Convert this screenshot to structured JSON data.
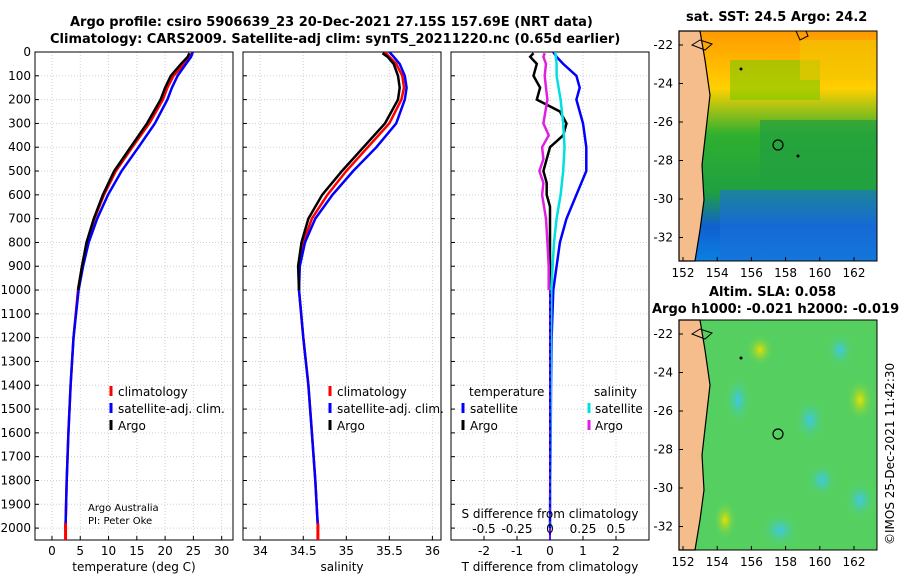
{
  "header": {
    "title_line1": "Argo profile: csiro 5906639_23 20-Dec-2021 27.15S 157.69E (NRT data)",
    "title_line2": "Climatology: CARS2009. Satellite-adj clim: synTS_20211220.nc (0.65d earlier)"
  },
  "maps": {
    "sst_title": "sat. SST: 24.5 Argo: 24.2",
    "sla_title_line1": "Altim. SLA: 0.058",
    "sla_title_line2": "Argo h1000: -0.021 h2000: -0.019",
    "lat_ticks": [
      "-22",
      "-24",
      "-26",
      "-28",
      "-30",
      "-32"
    ],
    "lon_ticks": [
      "152",
      "154",
      "156",
      "158",
      "160",
      "162"
    ],
    "colors": {
      "land": "#f6bd8c",
      "coast": "#000000"
    }
  },
  "footer": {
    "credit": "©IMOS 25-Dec-2021 11:42:30",
    "agency": "Argo Australia",
    "pi": "PI: Peter Oke"
  },
  "chart_data": [
    {
      "type": "line",
      "name": "temperature",
      "xlabel": "temperature (deg C)",
      "ylabel": "",
      "xlim": [
        -3,
        32
      ],
      "ylim": [
        2050,
        0
      ],
      "xticks": [
        "0",
        "5",
        "10",
        "15",
        "20",
        "25",
        "30"
      ],
      "xtick_values": [
        0,
        5,
        10,
        15,
        20,
        25,
        30
      ],
      "yticks": [
        "0",
        "100",
        "200",
        "300",
        "400",
        "500",
        "600",
        "700",
        "800",
        "900",
        "1000",
        "1100",
        "1200",
        "1300",
        "1400",
        "1500",
        "1600",
        "1700",
        "1800",
        "1900",
        "2000"
      ],
      "legend": [
        "climatology",
        "satellite-adj. clim.",
        "Argo"
      ],
      "series": [
        {
          "name": "climatology",
          "color": "#ff0000",
          "depth": [
            0,
            20,
            50,
            100,
            150,
            200,
            300,
            400,
            500,
            600,
            700,
            800,
            900,
            1000,
            1200,
            1400,
            1600,
            1800,
            2000
          ],
          "values": [
            24.8,
            24.5,
            23.4,
            21.5,
            20.4,
            19.6,
            17.2,
            14.2,
            11.3,
            9.2,
            7.5,
            6.2,
            5.3,
            4.6,
            3.8,
            3.3,
            2.9,
            2.6,
            2.4
          ]
        },
        {
          "name": "satellite-adj. clim.",
          "color": "#0000ff",
          "depth": [
            0,
            20,
            50,
            100,
            150,
            200,
            300,
            400,
            500,
            600,
            700,
            800,
            900,
            1000,
            1200,
            1400,
            1600,
            1800,
            2000
          ],
          "values": [
            24.9,
            24.6,
            23.7,
            22.2,
            21.2,
            20.4,
            18.2,
            15.3,
            12.3,
            9.9,
            8.0,
            6.5,
            5.5,
            4.7,
            3.8,
            3.3,
            2.9,
            2.6,
            2.4
          ]
        },
        {
          "name": "Argo",
          "color": "#000000",
          "depth": [
            5,
            20,
            50,
            100,
            150,
            200,
            300,
            400,
            500,
            600,
            700,
            800,
            900,
            1000
          ],
          "values": [
            24.3,
            24.0,
            22.8,
            21.0,
            20.0,
            19.2,
            16.8,
            13.9,
            11.0,
            9.0,
            7.4,
            6.1,
            5.3,
            4.6
          ]
        }
      ]
    },
    {
      "type": "line",
      "name": "salinity",
      "xlabel": "salinity",
      "xlim": [
        33.8,
        36.1
      ],
      "ylim": [
        2050,
        0
      ],
      "xticks": [
        "34",
        "34.5",
        "35",
        "35.5",
        "36"
      ],
      "xtick_values": [
        34,
        34.5,
        35,
        35.5,
        36
      ],
      "legend": [
        "climatology",
        "satellite-adj. clim.",
        "Argo"
      ],
      "series": [
        {
          "name": "climatology",
          "color": "#ff0000",
          "depth": [
            0,
            20,
            50,
            100,
            150,
            200,
            300,
            400,
            500,
            600,
            700,
            800,
            900,
            1000,
            1200,
            1400,
            1600,
            1800,
            2000
          ],
          "values": [
            35.45,
            35.5,
            35.58,
            35.65,
            35.67,
            35.64,
            35.5,
            35.25,
            35.0,
            34.78,
            34.6,
            34.5,
            34.45,
            34.45,
            34.5,
            34.56,
            34.6,
            34.64,
            34.67
          ]
        },
        {
          "name": "satellite-adj. clim.",
          "color": "#0000ff",
          "depth": [
            0,
            20,
            50,
            100,
            150,
            200,
            300,
            400,
            500,
            600,
            700,
            800,
            900,
            1000,
            1200,
            1400,
            1600,
            1800,
            2000
          ],
          "values": [
            35.5,
            35.55,
            35.62,
            35.68,
            35.7,
            35.68,
            35.58,
            35.35,
            35.08,
            34.84,
            34.64,
            34.52,
            34.46,
            34.45,
            34.5,
            34.56,
            34.6,
            34.64,
            34.67
          ]
        },
        {
          "name": "Argo",
          "color": "#000000",
          "depth": [
            5,
            20,
            50,
            100,
            150,
            200,
            300,
            400,
            500,
            600,
            700,
            800,
            900,
            1000
          ],
          "values": [
            35.42,
            35.48,
            35.55,
            35.6,
            35.62,
            35.6,
            35.45,
            35.2,
            34.95,
            34.72,
            34.56,
            34.48,
            34.44,
            34.45
          ]
        }
      ]
    },
    {
      "type": "line",
      "name": "difference",
      "xlabel": "T difference from climatology",
      "x2label": "S difference from climatology",
      "xlim": [
        -3,
        3
      ],
      "ylim": [
        2050,
        0
      ],
      "xticks": [
        "-2",
        "-1",
        "0",
        "1",
        "2"
      ],
      "xtick_values": [
        -2,
        -1,
        0,
        1,
        2
      ],
      "s_ticks": [
        "-0.5",
        "-0.25",
        "0",
        "0.25",
        "0.5"
      ],
      "s_tick_values": [
        -0.5,
        -0.25,
        0,
        0.25,
        0.5
      ],
      "legend_left_title": "temperature",
      "legend_right_title": "salinity",
      "legend_left": [
        "satellite",
        "Argo"
      ],
      "legend_right": [
        "satellite",
        "Argo"
      ],
      "series": [
        {
          "name": "T satellite",
          "color": "#0000ff",
          "depth": [
            0,
            20,
            50,
            100,
            150,
            200,
            300,
            400,
            500,
            600,
            700,
            800,
            900,
            1000,
            1200,
            1400,
            1600,
            1800,
            2000
          ],
          "values": [
            0.1,
            0.2,
            0.4,
            0.8,
            0.9,
            0.8,
            1.0,
            1.1,
            1.1,
            0.8,
            0.5,
            0.3,
            0.2,
            0.1,
            0.05,
            0.03,
            0.02,
            0.01,
            0.0
          ]
        },
        {
          "name": "T Argo",
          "color": "#000000",
          "depth": [
            5,
            20,
            50,
            100,
            150,
            200,
            250,
            300,
            350,
            400,
            450,
            500,
            550,
            600,
            650,
            700,
            800,
            900,
            1000
          ],
          "values": [
            -0.5,
            -0.6,
            -0.4,
            -0.5,
            -0.3,
            -0.4,
            0.3,
            0.5,
            0.4,
            0.0,
            -0.1,
            -0.2,
            -0.1,
            -0.1,
            0.0,
            0.0,
            0.0,
            0.0,
            0.0
          ]
        },
        {
          "name": "S satellite",
          "color": "#00e0e0",
          "depth": [
            0,
            50,
            100,
            200,
            300,
            400,
            500,
            600,
            700,
            800,
            1000,
            2000
          ],
          "values": [
            0.04,
            0.05,
            0.05,
            0.08,
            0.1,
            0.11,
            0.1,
            0.08,
            0.05,
            0.03,
            0.01,
            0.0
          ]
        },
        {
          "name": "S Argo",
          "color": "#e020e0",
          "depth": [
            5,
            20,
            50,
            100,
            150,
            200,
            300,
            350,
            400,
            450,
            500,
            550,
            600,
            700,
            800,
            900,
            1000
          ],
          "values": [
            -0.04,
            -0.05,
            -0.03,
            -0.04,
            -0.03,
            -0.02,
            -0.05,
            -0.01,
            -0.06,
            -0.05,
            -0.08,
            -0.05,
            -0.06,
            -0.03,
            -0.02,
            -0.01,
            -0.01
          ]
        }
      ]
    }
  ]
}
